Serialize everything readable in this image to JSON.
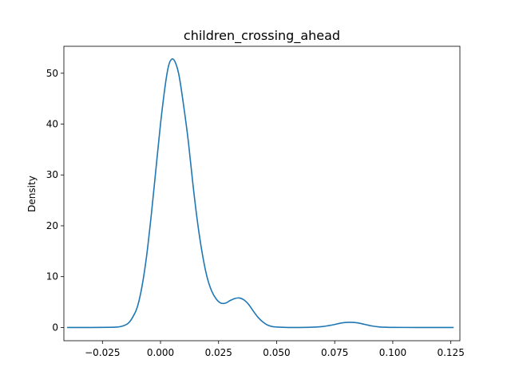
{
  "chart_data": {
    "type": "line",
    "title": "children_crossing_ahead",
    "xlabel": "",
    "ylabel": "Density",
    "xlim": [
      -0.0416,
      0.1289
    ],
    "ylim": [
      -2.6,
      55.3
    ],
    "grid": false,
    "legend": "none",
    "x_ticks": [
      -0.025,
      0.0,
      0.025,
      0.05,
      0.075,
      0.1,
      0.125
    ],
    "x_tick_labels": [
      "−0.025",
      "0.000",
      "0.025",
      "0.050",
      "0.075",
      "0.100",
      "0.125"
    ],
    "y_ticks": [
      0,
      10,
      20,
      30,
      40,
      50
    ],
    "y_tick_labels": [
      "0",
      "10",
      "20",
      "30",
      "40",
      "50"
    ],
    "series": [
      {
        "color": "#1f77b4",
        "x": [
          -0.04,
          -0.03,
          -0.02,
          -0.017,
          -0.014,
          -0.012,
          -0.01,
          -0.008,
          -0.006,
          -0.004,
          -0.002,
          0.0,
          0.002,
          0.0035,
          0.005,
          0.0065,
          0.008,
          0.01,
          0.012,
          0.014,
          0.016,
          0.018,
          0.02,
          0.022,
          0.024,
          0.026,
          0.028,
          0.03,
          0.032,
          0.034,
          0.036,
          0.038,
          0.04,
          0.042,
          0.044,
          0.046,
          0.048,
          0.05,
          0.055,
          0.06,
          0.065,
          0.07,
          0.074,
          0.077,
          0.08,
          0.083,
          0.085,
          0.088,
          0.091,
          0.094,
          0.097,
          0.1,
          0.11,
          0.126
        ],
        "y": [
          0,
          0,
          0.05,
          0.2,
          0.8,
          2.0,
          4.0,
          8.0,
          14.0,
          22.0,
          31.0,
          40.0,
          47.5,
          51.5,
          52.8,
          52.0,
          49.5,
          43.5,
          36.5,
          28.0,
          20.5,
          14.5,
          10.0,
          7.2,
          5.6,
          4.8,
          4.8,
          5.3,
          5.7,
          5.8,
          5.4,
          4.5,
          3.2,
          2.0,
          1.1,
          0.5,
          0.2,
          0.1,
          0.0,
          0.0,
          0.05,
          0.2,
          0.5,
          0.8,
          1.0,
          1.0,
          0.9,
          0.6,
          0.3,
          0.12,
          0.05,
          0.02,
          0.0,
          0.0
        ]
      }
    ]
  }
}
